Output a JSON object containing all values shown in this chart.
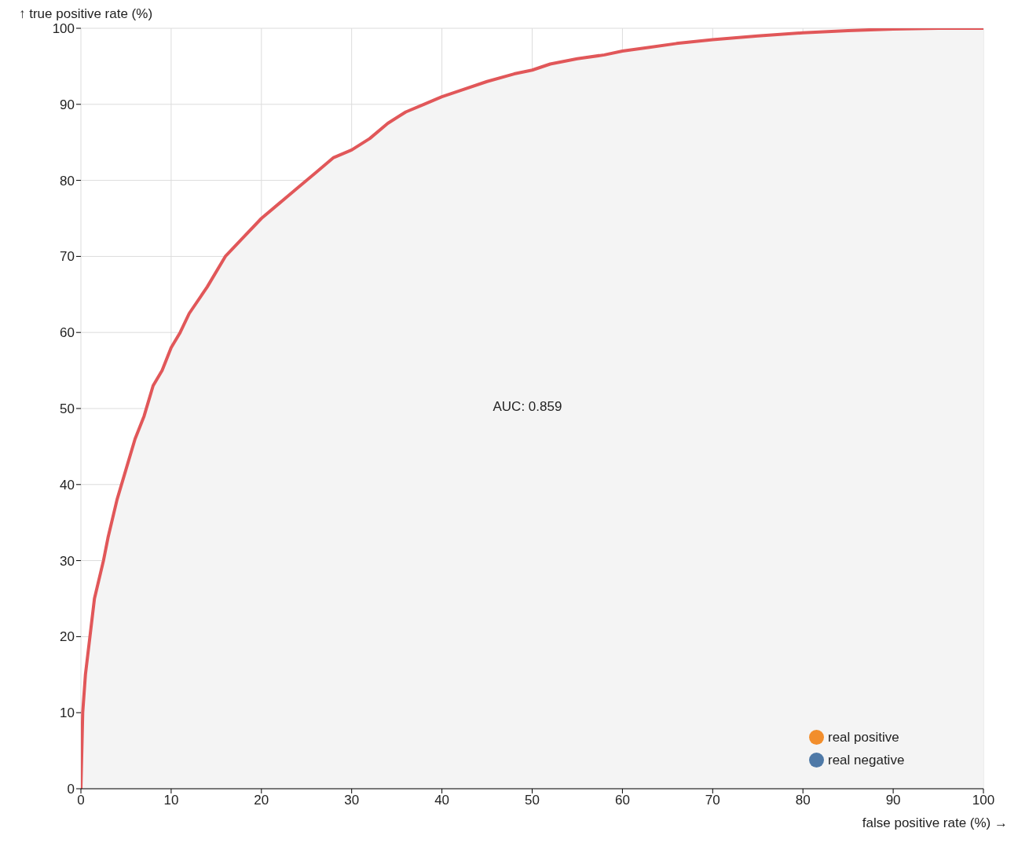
{
  "chart_data": {
    "type": "line",
    "xlabel": "false positive rate (%) →",
    "ylabel": "↑ true positive rate (%)",
    "annotations": [
      "AUC: 0.859"
    ],
    "series": [
      {
        "color": "#e15759",
        "x": [
          0,
          0.2,
          0.5,
          1,
          1.5,
          2.5,
          3,
          4,
          5,
          6,
          7,
          8,
          9,
          10,
          11,
          12,
          14,
          16,
          18,
          20,
          22,
          24,
          26,
          28,
          30,
          32,
          34,
          36,
          38,
          40,
          42,
          45,
          48,
          50,
          52,
          55,
          58,
          60,
          63,
          66,
          70,
          75,
          80,
          85,
          90,
          95,
          100
        ],
        "values": [
          0,
          10,
          15,
          20,
          25,
          30,
          33,
          38,
          42,
          46,
          49,
          53,
          55,
          58,
          60,
          62.5,
          66,
          70,
          72.5,
          75,
          77,
          79,
          81,
          83,
          84,
          85.5,
          87.5,
          89,
          90,
          91,
          91.8,
          93,
          94,
          94.5,
          95.3,
          96,
          96.5,
          97,
          97.5,
          98,
          98.5,
          99,
          99.4,
          99.7,
          99.9,
          100,
          100
        ]
      },
      {
        "type": "scatter",
        "name": "real positive",
        "color": "#f28e2c"
      },
      {
        "type": "scatter",
        "name": "real negative",
        "color": "#4e79a7"
      }
    ],
    "xlim": [
      0,
      100
    ],
    "ylim": [
      0,
      100
    ],
    "xticks": [
      0,
      10,
      20,
      30,
      40,
      50,
      60,
      70,
      80,
      90,
      100
    ],
    "yticks": [
      0,
      10,
      20,
      30,
      40,
      50,
      60,
      70,
      80,
      90,
      100
    ],
    "grid": true,
    "legend": "bottom right"
  }
}
